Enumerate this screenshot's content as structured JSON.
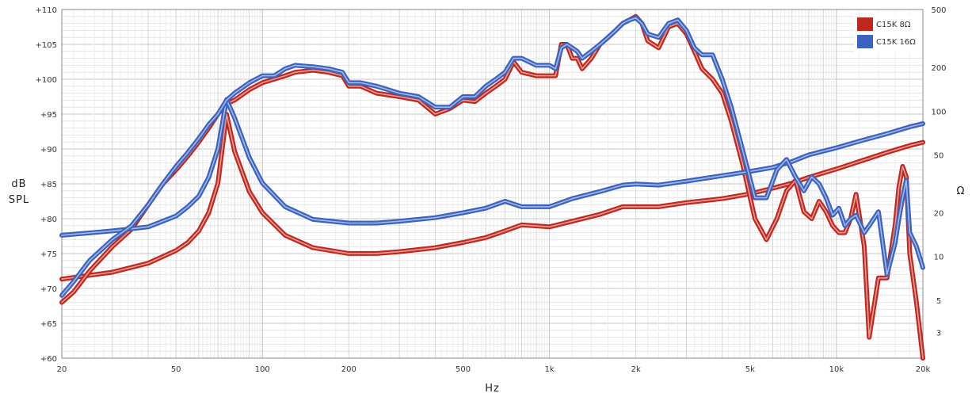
{
  "chart_data": {
    "type": "line",
    "xlabel": "Hz",
    "ylabel_left": [
      "dB",
      "SPL"
    ],
    "ylabel_right": "Ω",
    "xscale": "log",
    "xlim": [
      20,
      20000
    ],
    "ylim_left": [
      60,
      110
    ],
    "ylim_right": [
      2,
      500
    ],
    "yscale_right": "log",
    "grid": true,
    "legend_position": "top-right",
    "x_ticks": [
      {
        "value": 20,
        "label": "20"
      },
      {
        "value": 50,
        "label": "50"
      },
      {
        "value": 100,
        "label": "100"
      },
      {
        "value": 200,
        "label": "200"
      },
      {
        "value": 500,
        "label": "500"
      },
      {
        "value": 1000,
        "label": "1k"
      },
      {
        "value": 2000,
        "label": "2k"
      },
      {
        "value": 5000,
        "label": "5k"
      },
      {
        "value": 10000,
        "label": "10k"
      },
      {
        "value": 20000,
        "label": "20k"
      }
    ],
    "y_left_ticks": [
      {
        "value": 60,
        "label": "+60"
      },
      {
        "value": 65,
        "label": "+65"
      },
      {
        "value": 70,
        "label": "+70"
      },
      {
        "value": 75,
        "label": "+75"
      },
      {
        "value": 80,
        "label": "+80"
      },
      {
        "value": 85,
        "label": "+85"
      },
      {
        "value": 90,
        "label": "+90"
      },
      {
        "value": 95,
        "label": "+95"
      },
      {
        "value": 100,
        "label": "+100"
      },
      {
        "value": 105,
        "label": "+105"
      },
      {
        "value": 110,
        "label": "+110"
      }
    ],
    "y_right_ticks": [
      {
        "value": 3,
        "label": "3"
      },
      {
        "value": 5,
        "label": "5"
      },
      {
        "value": 10,
        "label": "10"
      },
      {
        "value": 20,
        "label": "20"
      },
      {
        "value": 50,
        "label": "50"
      },
      {
        "value": 100,
        "label": "100"
      },
      {
        "value": 200,
        "label": "200"
      },
      {
        "value": 500,
        "label": "500"
      }
    ],
    "series": [
      {
        "name": "C15K 8Ω",
        "color": "#c0281e",
        "spl": [
          [
            20,
            68
          ],
          [
            22,
            69.5
          ],
          [
            25,
            72.5
          ],
          [
            30,
            76
          ],
          [
            35,
            78.5
          ],
          [
            40,
            82
          ],
          [
            45,
            85
          ],
          [
            50,
            87
          ],
          [
            55,
            89
          ],
          [
            60,
            91
          ],
          [
            65,
            93
          ],
          [
            70,
            95
          ],
          [
            75,
            96.5
          ],
          [
            80,
            97
          ],
          [
            90,
            98.5
          ],
          [
            100,
            99.5
          ],
          [
            120,
            100.5
          ],
          [
            130,
            101
          ],
          [
            150,
            101.3
          ],
          [
            170,
            101
          ],
          [
            190,
            100.5
          ],
          [
            200,
            99
          ],
          [
            220,
            99
          ],
          [
            250,
            98
          ],
          [
            300,
            97.5
          ],
          [
            350,
            97
          ],
          [
            400,
            95
          ],
          [
            450,
            95.8
          ],
          [
            500,
            97
          ],
          [
            550,
            96.8
          ],
          [
            600,
            98
          ],
          [
            650,
            99
          ],
          [
            700,
            100
          ],
          [
            750,
            102.5
          ],
          [
            800,
            101
          ],
          [
            900,
            100.5
          ],
          [
            1000,
            100.5
          ],
          [
            1050,
            100.5
          ],
          [
            1100,
            105
          ],
          [
            1150,
            105
          ],
          [
            1200,
            103
          ],
          [
            1250,
            103
          ],
          [
            1300,
            101.5
          ],
          [
            1400,
            103
          ],
          [
            1500,
            105
          ],
          [
            1600,
            106
          ],
          [
            1700,
            107
          ],
          [
            1800,
            108
          ],
          [
            1900,
            108.5
          ],
          [
            2000,
            109
          ],
          [
            2100,
            108
          ],
          [
            2200,
            105.5
          ],
          [
            2400,
            104.5
          ],
          [
            2600,
            107.5
          ],
          [
            2800,
            108
          ],
          [
            3000,
            106.5
          ],
          [
            3200,
            104
          ],
          [
            3400,
            101.5
          ],
          [
            3700,
            100
          ],
          [
            4000,
            98
          ],
          [
            4300,
            94
          ],
          [
            4700,
            88
          ],
          [
            5200,
            80
          ],
          [
            5700,
            77
          ],
          [
            6200,
            80
          ],
          [
            6700,
            84
          ],
          [
            7200,
            85.5
          ],
          [
            7700,
            81
          ],
          [
            8200,
            80
          ],
          [
            8700,
            82.5
          ],
          [
            9200,
            81
          ],
          [
            9700,
            79
          ],
          [
            10200,
            78
          ],
          [
            10700,
            78
          ],
          [
            11200,
            80
          ],
          [
            11700,
            83.5
          ],
          [
            12500,
            76
          ],
          [
            13000,
            63
          ],
          [
            14000,
            71.5
          ],
          [
            15000,
            71.5
          ],
          [
            16000,
            79
          ],
          [
            16500,
            84.5
          ],
          [
            17000,
            87.5
          ],
          [
            17500,
            86
          ],
          [
            18000,
            75
          ],
          [
            19000,
            68
          ],
          [
            20000,
            60
          ]
        ],
        "impedance": [
          [
            20,
            7
          ],
          [
            30,
            7.8
          ],
          [
            40,
            9
          ],
          [
            50,
            11
          ],
          [
            55,
            12.5
          ],
          [
            60,
            15
          ],
          [
            65,
            20
          ],
          [
            70,
            32
          ],
          [
            75,
            95
          ],
          [
            80,
            53
          ],
          [
            90,
            28
          ],
          [
            100,
            20
          ],
          [
            120,
            14
          ],
          [
            150,
            11.5
          ],
          [
            200,
            10.5
          ],
          [
            250,
            10.5
          ],
          [
            300,
            10.8
          ],
          [
            400,
            11.5
          ],
          [
            500,
            12.5
          ],
          [
            600,
            13.5
          ],
          [
            700,
            15
          ],
          [
            800,
            16.5
          ],
          [
            1000,
            16
          ],
          [
            1200,
            17.5
          ],
          [
            1500,
            19.5
          ],
          [
            1800,
            22
          ],
          [
            2000,
            22
          ],
          [
            2400,
            22
          ],
          [
            3000,
            23.5
          ],
          [
            4000,
            25
          ],
          [
            5000,
            27
          ],
          [
            6000,
            29.5
          ],
          [
            7000,
            32
          ],
          [
            8000,
            35
          ],
          [
            10000,
            40
          ],
          [
            12000,
            45
          ],
          [
            15000,
            52
          ],
          [
            18000,
            58
          ],
          [
            20000,
            61
          ]
        ]
      },
      {
        "name": "C15K 16Ω",
        "color": "#3a62c0",
        "spl": [
          [
            20,
            69
          ],
          [
            22,
            71
          ],
          [
            25,
            74
          ],
          [
            30,
            77
          ],
          [
            35,
            79
          ],
          [
            40,
            82
          ],
          [
            45,
            85
          ],
          [
            50,
            87.5
          ],
          [
            55,
            89.5
          ],
          [
            60,
            91.5
          ],
          [
            65,
            93.5
          ],
          [
            70,
            95
          ],
          [
            75,
            97
          ],
          [
            80,
            98
          ],
          [
            90,
            99.5
          ],
          [
            100,
            100.5
          ],
          [
            110,
            100.5
          ],
          [
            120,
            101.5
          ],
          [
            130,
            102
          ],
          [
            150,
            101.8
          ],
          [
            170,
            101.5
          ],
          [
            190,
            101
          ],
          [
            200,
            99.5
          ],
          [
            220,
            99.5
          ],
          [
            250,
            99
          ],
          [
            300,
            98
          ],
          [
            350,
            97.5
          ],
          [
            400,
            96
          ],
          [
            450,
            96
          ],
          [
            500,
            97.5
          ],
          [
            550,
            97.5
          ],
          [
            600,
            99
          ],
          [
            650,
            100
          ],
          [
            700,
            101
          ],
          [
            750,
            103
          ],
          [
            800,
            103
          ],
          [
            900,
            102
          ],
          [
            1000,
            102
          ],
          [
            1050,
            101.5
          ],
          [
            1100,
            104.5
          ],
          [
            1150,
            105
          ],
          [
            1200,
            104.5
          ],
          [
            1250,
            104
          ],
          [
            1300,
            103
          ],
          [
            1400,
            104
          ],
          [
            1500,
            105
          ],
          [
            1600,
            106
          ],
          [
            1700,
            107
          ],
          [
            1800,
            108
          ],
          [
            1900,
            108.5
          ],
          [
            2000,
            108.8
          ],
          [
            2100,
            108
          ],
          [
            2200,
            106.5
          ],
          [
            2400,
            106
          ],
          [
            2600,
            108
          ],
          [
            2800,
            108.5
          ],
          [
            3000,
            107
          ],
          [
            3200,
            104.5
          ],
          [
            3400,
            103.5
          ],
          [
            3700,
            103.5
          ],
          [
            4000,
            100
          ],
          [
            4300,
            96
          ],
          [
            4700,
            90
          ],
          [
            5200,
            83
          ],
          [
            5700,
            83
          ],
          [
            6200,
            87
          ],
          [
            6700,
            88.5
          ],
          [
            7200,
            86
          ],
          [
            7700,
            84
          ],
          [
            8200,
            86
          ],
          [
            8700,
            85
          ],
          [
            9200,
            83
          ],
          [
            9700,
            80.5
          ],
          [
            10200,
            81.5
          ],
          [
            10700,
            79
          ],
          [
            11200,
            80
          ],
          [
            11700,
            80.5
          ],
          [
            12500,
            78
          ],
          [
            13000,
            79
          ],
          [
            14000,
            81
          ],
          [
            15000,
            72
          ],
          [
            16000,
            76.5
          ],
          [
            16500,
            80
          ],
          [
            17000,
            83
          ],
          [
            17500,
            85.5
          ],
          [
            18000,
            78
          ],
          [
            19000,
            76
          ],
          [
            20000,
            73
          ]
        ],
        "impedance": [
          [
            20,
            14
          ],
          [
            30,
            15
          ],
          [
            40,
            16
          ],
          [
            50,
            19
          ],
          [
            55,
            22
          ],
          [
            60,
            26
          ],
          [
            65,
            35
          ],
          [
            70,
            55
          ],
          [
            75,
            120
          ],
          [
            80,
            90
          ],
          [
            90,
            48
          ],
          [
            100,
            32
          ],
          [
            120,
            22
          ],
          [
            150,
            18
          ],
          [
            200,
            17
          ],
          [
            250,
            17
          ],
          [
            300,
            17.5
          ],
          [
            400,
            18.5
          ],
          [
            500,
            20
          ],
          [
            600,
            21.5
          ],
          [
            700,
            24
          ],
          [
            800,
            22
          ],
          [
            1000,
            22
          ],
          [
            1200,
            25
          ],
          [
            1500,
            28
          ],
          [
            1800,
            31
          ],
          [
            2000,
            31.5
          ],
          [
            2400,
            31
          ],
          [
            3000,
            33
          ],
          [
            4000,
            36
          ],
          [
            5000,
            38.5
          ],
          [
            6000,
            41
          ],
          [
            7000,
            45
          ],
          [
            8000,
            50
          ],
          [
            10000,
            56
          ],
          [
            12000,
            62
          ],
          [
            15000,
            70
          ],
          [
            18000,
            78
          ],
          [
            20000,
            82
          ]
        ]
      }
    ]
  }
}
